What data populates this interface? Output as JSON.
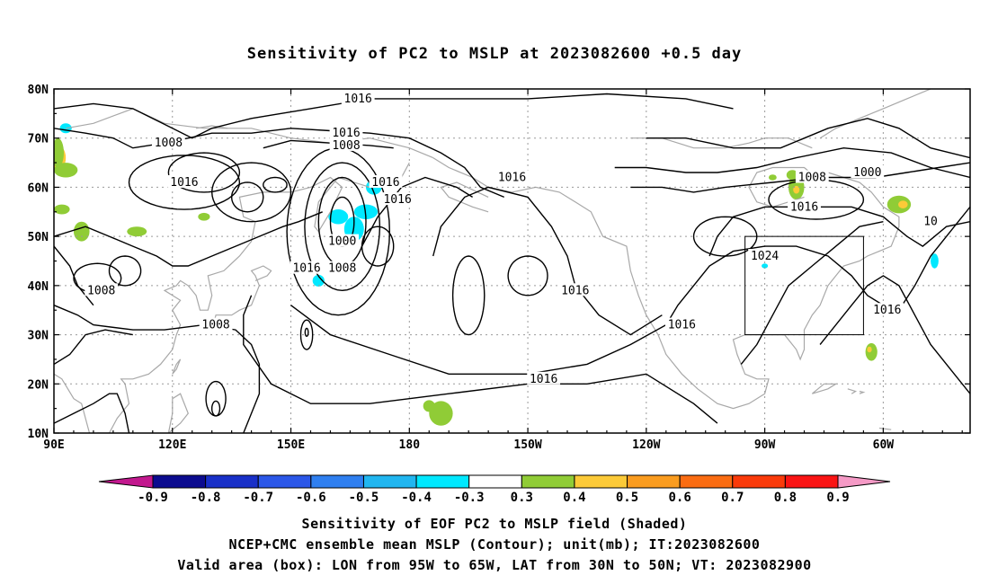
{
  "title": "Sensitivity of PC2 to MSLP at 2023082600 +0.5 day",
  "lat_labels": [
    "10N",
    "20N",
    "30N",
    "40N",
    "50N",
    "60N",
    "70N",
    "80N"
  ],
  "lon_labels": [
    "90E",
    "120E",
    "150E",
    "180",
    "150W",
    "120W",
    "90W",
    "60W"
  ],
  "contour_labels": [
    {
      "text": "1016",
      "lon": 167,
      "lat": 78
    },
    {
      "text": "1016",
      "lon": 164,
      "lat": 71
    },
    {
      "text": "1008",
      "lon": 164,
      "lat": 68.5
    },
    {
      "text": "1008",
      "lon": 119,
      "lat": 69
    },
    {
      "text": "1016",
      "lon": 123,
      "lat": 61
    },
    {
      "text": "1016",
      "lon": 177,
      "lat": 57.5
    },
    {
      "text": "1016",
      "lon": 174,
      "lat": 61
    },
    {
      "text": "1016",
      "lon": 206,
      "lat": 62
    },
    {
      "text": "1000",
      "lon": 163,
      "lat": 49
    },
    {
      "text": "1008",
      "lon": 163,
      "lat": 43.5
    },
    {
      "text": "1016",
      "lon": 154,
      "lat": 43.5
    },
    {
      "text": "1016",
      "lon": 222,
      "lat": 39
    },
    {
      "text": "1016",
      "lon": 249,
      "lat": 32
    },
    {
      "text": "1016",
      "lon": 214,
      "lat": 21
    },
    {
      "text": "1008",
      "lon": 102,
      "lat": 39
    },
    {
      "text": "1008",
      "lon": 131,
      "lat": 32
    },
    {
      "text": "1024",
      "lon": 270,
      "lat": 46
    },
    {
      "text": "1016",
      "lon": 280,
      "lat": 56
    },
    {
      "text": "1008",
      "lon": 282,
      "lat": 62
    },
    {
      "text": "1000",
      "lon": 296,
      "lat": 63
    },
    {
      "text": "1016",
      "lon": 301,
      "lat": 35
    },
    {
      "text": "10",
      "lon": 312,
      "lat": 53
    }
  ],
  "colorbar": {
    "labels": [
      "-0.9",
      "-0.8",
      "-0.7",
      "-0.6",
      "-0.5",
      "-0.4",
      "-0.3",
      "0.3",
      "0.4",
      "0.5",
      "0.6",
      "0.7",
      "0.8",
      "0.9"
    ],
    "colors": [
      "#0b0b8f",
      "#1930c8",
      "#2b57e8",
      "#2f7ff0",
      "#21b6f0",
      "#00e8ff",
      "#ffffff",
      "#90cc36",
      "#fcca38",
      "#fa9c1f",
      "#fa6c12",
      "#fa3a0a",
      "#fa1414"
    ],
    "low_end_color": "#c2188e",
    "high_end_color": "#f59ac6"
  },
  "valid_box": {
    "lon_min": -95,
    "lon_max": -65,
    "lat_min": 30,
    "lat_max": 50
  },
  "shaded_patches": [
    {
      "lon": 91,
      "lat": 66,
      "rx": 2,
      "ry": 2.5,
      "color": "#fcca38"
    },
    {
      "lon": 93,
      "lat": 63.5,
      "rx": 3,
      "ry": 1.5,
      "color": "#90cc36"
    },
    {
      "lon": 91,
      "lat": 67,
      "rx": 1.5,
      "ry": 3,
      "color": "#90cc36"
    },
    {
      "lon": 92,
      "lat": 55.5,
      "rx": 2,
      "ry": 1,
      "color": "#90cc36"
    },
    {
      "lon": 97,
      "lat": 51,
      "rx": 2,
      "ry": 2,
      "color": "#90cc36"
    },
    {
      "lon": 111,
      "lat": 51,
      "rx": 2.5,
      "ry": 1,
      "color": "#90cc36"
    },
    {
      "lon": 128,
      "lat": 54,
      "rx": 1.5,
      "ry": 0.8,
      "color": "#90cc36"
    },
    {
      "lon": 162,
      "lat": 54,
      "rx": 2.5,
      "ry": 1.5,
      "color": "#00e8ff"
    },
    {
      "lon": 166,
      "lat": 51.5,
      "rx": 2.5,
      "ry": 2.5,
      "color": "#00e8ff"
    },
    {
      "lon": 169,
      "lat": 55,
      "rx": 3,
      "ry": 1.5,
      "color": "#00e8ff"
    },
    {
      "lon": 171,
      "lat": 60,
      "rx": 2,
      "ry": 1.5,
      "color": "#00e8ff"
    },
    {
      "lon": 157,
      "lat": 41,
      "rx": 1.5,
      "ry": 1.2,
      "color": "#00e8ff"
    },
    {
      "lon": 93,
      "lat": 72,
      "rx": 1.5,
      "ry": 1,
      "color": "#00e8ff"
    },
    {
      "lon": 188,
      "lat": 14,
      "rx": 3,
      "ry": 2.5,
      "color": "#90cc36"
    },
    {
      "lon": 185,
      "lat": 15.5,
      "rx": 1.5,
      "ry": 1.2,
      "color": "#90cc36"
    },
    {
      "lon": 278,
      "lat": 60,
      "rx": 2,
      "ry": 2.5,
      "color": "#90cc36"
    },
    {
      "lon": 278,
      "lat": 59.5,
      "rx": 0.8,
      "ry": 0.8,
      "color": "#fcca38"
    },
    {
      "lon": 277,
      "lat": 62.5,
      "rx": 1.5,
      "ry": 1,
      "color": "#90cc36"
    },
    {
      "lon": 272,
      "lat": 62,
      "rx": 1,
      "ry": 0.6,
      "color": "#90cc36"
    },
    {
      "lon": 304,
      "lat": 56.5,
      "rx": 3,
      "ry": 1.8,
      "color": "#90cc36"
    },
    {
      "lon": 305,
      "lat": 56.5,
      "rx": 1.2,
      "ry": 0.8,
      "color": "#fcca38"
    },
    {
      "lon": 297,
      "lat": 26.5,
      "rx": 1.5,
      "ry": 1.8,
      "color": "#90cc36"
    },
    {
      "lon": 296.5,
      "lat": 27,
      "rx": 0.6,
      "ry": 0.6,
      "color": "#fcca38"
    },
    {
      "lon": 313,
      "lat": 45,
      "rx": 1,
      "ry": 1.5,
      "color": "#00e8ff"
    },
    {
      "lon": 270,
      "lat": 44,
      "rx": 0.8,
      "ry": 0.5,
      "color": "#00e8ff"
    }
  ],
  "captions": {
    "line1": "Sensitivity of EOF PC2 to MSLP field (Shaded)",
    "line2": "NCEP+CMC ensemble mean MSLP (Contour); unit(mb); IT:2023082600",
    "line3": "Valid area (box): LON from 95W to 65W, LAT from 30N to 50N; VT: 2023082900"
  }
}
